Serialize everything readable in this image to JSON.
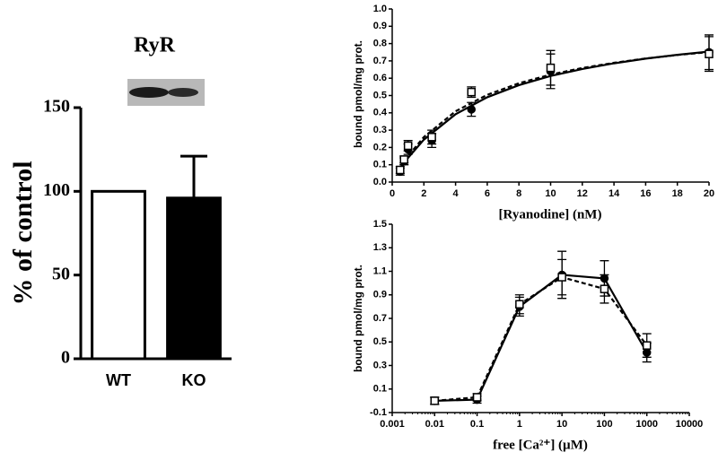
{
  "chart_data": [
    {
      "type": "bar",
      "title": "RyR",
      "y_label": "% of control",
      "categories": [
        "WT",
        "KO"
      ],
      "values": [
        100,
        96
      ],
      "errors": [
        null,
        25
      ],
      "colors": [
        "#ffffff",
        "#000000"
      ],
      "ylim": [
        0,
        150
      ],
      "yticks": [
        0,
        50,
        100,
        150
      ]
    },
    {
      "type": "scatter",
      "x_label": "[Ryanodine] (nM)",
      "y_label": "bound pmol/mg prot.",
      "xlim": [
        0,
        20
      ],
      "xticks": [
        0,
        2,
        4,
        6,
        8,
        10,
        12,
        14,
        16,
        18,
        20
      ],
      "ylim": [
        0,
        1.0
      ],
      "yticks": [
        {
          "value": 0,
          "label": "0.0"
        },
        0.1,
        0.2,
        0.3,
        0.4,
        0.5,
        0.6,
        0.7,
        0.8,
        0.9,
        {
          "value": 1,
          "label": "1.0"
        }
      ],
      "series": [
        {
          "marker": "circle",
          "color": "#000000",
          "line_style": "solid",
          "x": [
            0.5,
            0.75,
            1,
            2.5,
            5,
            10,
            20
          ],
          "values": [
            0.06,
            0.12,
            0.19,
            0.24,
            0.42,
            0.64,
            0.75
          ],
          "errors": [
            0.02,
            0.02,
            0.03,
            0.04,
            0.04,
            0.1,
            0.1
          ],
          "fit": {
            "x": [
              0.3,
              1,
              2,
              4,
              6,
              8,
              10,
              12,
              14,
              16,
              18,
              20
            ],
            "values": [
              0.047,
              0.14,
              0.245,
              0.392,
              0.49,
              0.56,
              0.613,
              0.653,
              0.686,
              0.713,
              0.735,
              0.754
            ]
          }
        },
        {
          "marker": "square",
          "color": "#ffffff",
          "line_style": "dashed",
          "x": [
            0.5,
            0.75,
            1,
            2.5,
            5,
            10,
            20
          ],
          "values": [
            0.07,
            0.13,
            0.21,
            0.26,
            0.52,
            0.66,
            0.74
          ],
          "errors": [
            0.02,
            0.02,
            0.03,
            0.04,
            0.03,
            0.1,
            0.1
          ],
          "fit": {
            "x": [
              0.3,
              1,
              2,
              4,
              6,
              8,
              10,
              12,
              14,
              16,
              18,
              20
            ],
            "values": [
              0.051,
              0.151,
              0.26,
              0.409,
              0.504,
              0.571,
              0.621,
              0.659,
              0.689,
              0.714,
              0.734,
              0.751
            ]
          }
        }
      ]
    },
    {
      "type": "line",
      "x_label": "free [Ca²⁺] (µM)",
      "y_label": "bound pmol/mg prot.",
      "log_x": true,
      "xlim": [
        0.001,
        10000
      ],
      "xticks": [
        0.001,
        0.01,
        0.1,
        1,
        10,
        100,
        1000,
        10000
      ],
      "ylim": [
        -0.1,
        1.5
      ],
      "yticks": [
        -0.1,
        0.1,
        0.3,
        0.5,
        0.7,
        0.9,
        1.1,
        1.3,
        1.5
      ],
      "series": [
        {
          "marker": "circle",
          "color": "#000000",
          "line_style": "solid",
          "x": [
            0.01,
            0.1,
            1,
            10,
            100,
            1000
          ],
          "values": [
            0.0,
            0.01,
            0.8,
            1.07,
            1.04,
            0.41
          ],
          "errors": [
            0.03,
            0.03,
            0.08,
            0.2,
            0.15,
            0.08
          ]
        },
        {
          "marker": "square",
          "color": "#ffffff",
          "line_style": "dashed",
          "x": [
            0.01,
            0.1,
            1,
            10,
            100,
            1000
          ],
          "values": [
            0.0,
            0.03,
            0.82,
            1.05,
            0.95,
            0.47
          ],
          "errors": [
            0.03,
            0.03,
            0.08,
            0.15,
            0.12,
            0.1
          ]
        }
      ]
    }
  ]
}
